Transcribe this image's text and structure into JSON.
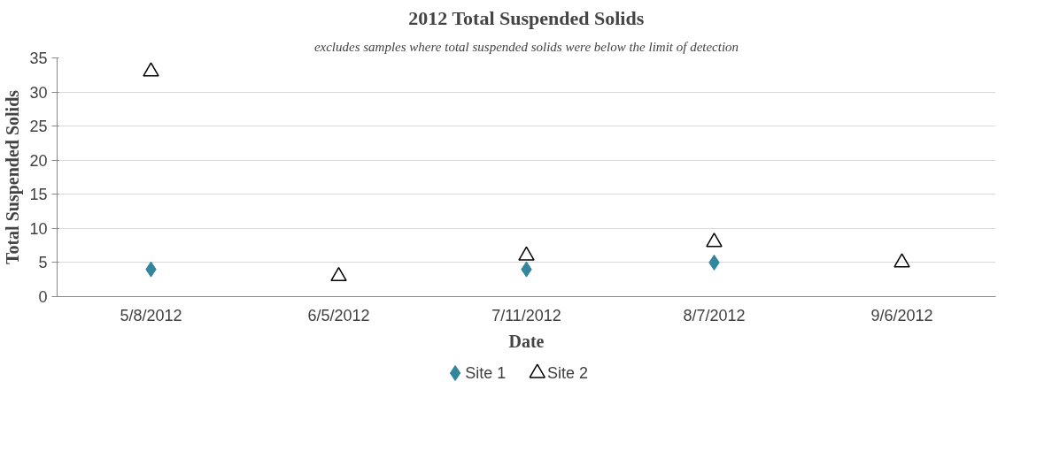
{
  "chart_data": {
    "type": "scatter",
    "title": "2012 Total Suspended Solids",
    "subtitle": "excludes samples where total suspended solids were below the limit of detection",
    "xlabel": "Date",
    "ylabel": "Total Suspended Solids",
    "categories": [
      "5/8/2012",
      "6/5/2012",
      "7/11/2012",
      "8/7/2012",
      "9/6/2012"
    ],
    "series": [
      {
        "name": "Site 1",
        "color": "#31859c",
        "marker": "diamond",
        "values": [
          4,
          null,
          4,
          5,
          null
        ]
      },
      {
        "name": "Site 2",
        "color": "#000000",
        "marker": "triangle",
        "values": [
          33,
          3,
          6,
          8,
          5
        ]
      }
    ],
    "ylim": [
      0,
      35
    ],
    "yticks": [
      0,
      5,
      10,
      15,
      20,
      25,
      30,
      35
    ],
    "grid": "y",
    "legend": "bottom"
  }
}
